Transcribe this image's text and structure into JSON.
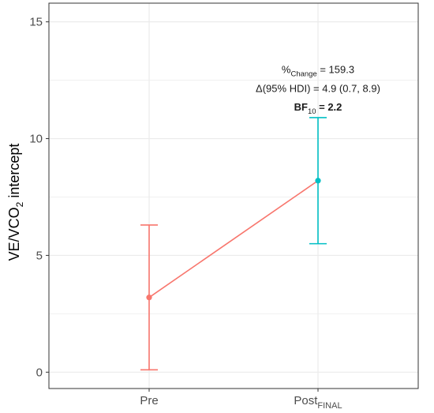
{
  "chart_data": {
    "type": "line",
    "categories": [
      "Pre",
      "Post"
    ],
    "category_subscripts": [
      "",
      "FINAL"
    ],
    "ylabel": "VE/VCO",
    "ylabel_subscript": "2",
    "ylabel_suffix": " intercept",
    "ylim": [
      -0.7,
      15.8
    ],
    "yticks": [
      0,
      5,
      10,
      15
    ],
    "ytick_labels": [
      "0",
      "5",
      "10",
      "15"
    ],
    "grid": true,
    "series": [
      {
        "points": [
          {
            "category": "Pre",
            "y": 3.2,
            "lower": 0.1,
            "upper": 6.3,
            "color": "#F8766D"
          },
          {
            "category": "Post",
            "y": 8.2,
            "lower": 5.5,
            "upper": 10.9,
            "color": "#00BFC4"
          }
        ],
        "line_color": "#F8766D"
      }
    ],
    "annotations": {
      "change_prefix": "%",
      "change_sub": "Change",
      "change_value": " = 159.3",
      "delta_text": "Δ(95% HDI) = 4.9 (0.7, 8.9)",
      "bf_prefix": "BF",
      "bf_sub": "10",
      "bf_value": " = 2.2",
      "anchor_y": [
        12.8,
        12.0,
        11.2
      ]
    }
  }
}
